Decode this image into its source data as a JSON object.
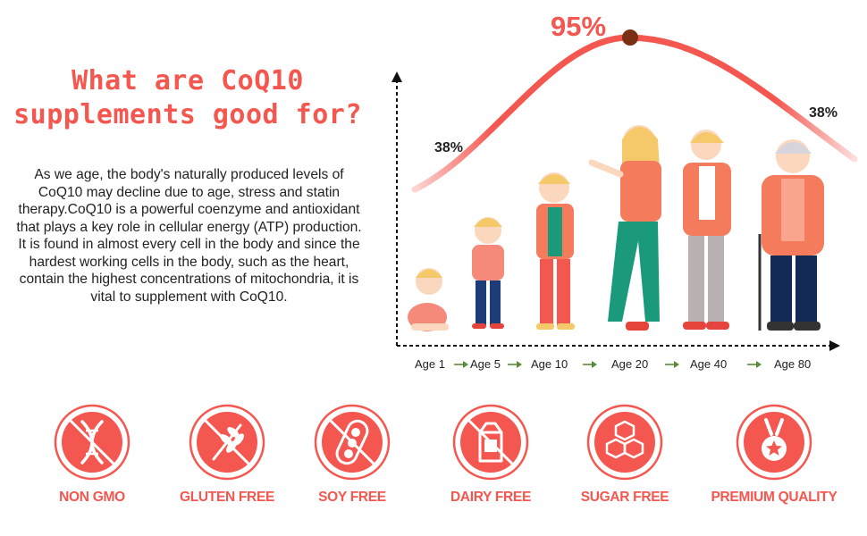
{
  "header": {
    "title_line1": "What are CoQ10",
    "title_line2": "supplements good for?"
  },
  "description": "As we age, the body's naturally produced levels of CoQ10 may decline due to age, stress and statin therapy.CoQ10 is a powerful coenzyme and antioxidant that plays a key role in cellular energy (ATP) production. It is found in almost every cell in the body and since the hardest working cells in the body, such as the heart, contain the highest concentrations of mitochondria, it is vital to supplement with CoQ10.",
  "colors": {
    "accent": "#f4574f",
    "peak_dot": "#7a2e14",
    "text": "#222222"
  },
  "chart_data": {
    "type": "line",
    "x_categories": [
      "Age 1",
      "Age 5",
      "Age 10",
      "Age 20",
      "Age 40",
      "Age 80"
    ],
    "annotations": [
      {
        "label": "38%",
        "value": 38,
        "position": "left"
      },
      {
        "label": "95%",
        "value": 95,
        "position": "peak"
      },
      {
        "label": "38%",
        "value": 38,
        "position": "right"
      }
    ],
    "axes": {
      "x_arrow": true,
      "y_arrow": true,
      "style": "dashed"
    }
  },
  "badges": [
    {
      "label": "NON GMO",
      "icon": "dna-icon"
    },
    {
      "label": "GLUTEN FREE",
      "icon": "wheat-icon"
    },
    {
      "label": "SOY FREE",
      "icon": "soybean-icon"
    },
    {
      "label": "DAIRY FREE",
      "icon": "milk-carton-icon"
    },
    {
      "label": "SUGAR FREE",
      "icon": "sugar-cubes-icon"
    },
    {
      "label": "PREMIUM QUALITY",
      "icon": "medal-icon"
    }
  ]
}
